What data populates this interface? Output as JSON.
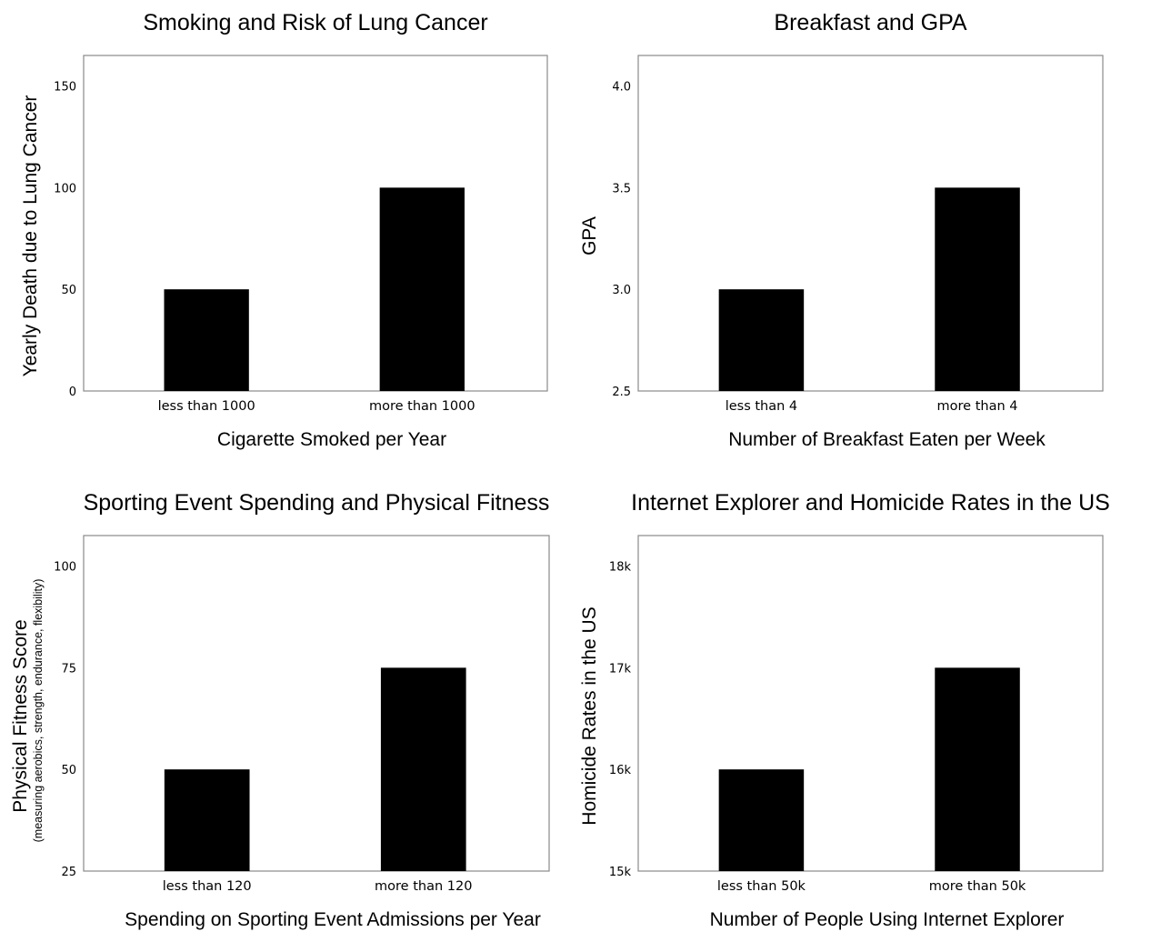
{
  "chart_data": [
    {
      "type": "bar",
      "title": "Smoking and Risk of Lung Cancer",
      "xlabel": "Cigarette Smoked per Year",
      "ylabel": "Yearly Death due to Lung Cancer",
      "ylabel_sub": "",
      "categories": [
        "less than 1000",
        "more than 1000"
      ],
      "values": [
        50,
        100
      ],
      "yticks": [
        0,
        50,
        100,
        150
      ],
      "ytick_labels": [
        "0",
        "50",
        "100",
        "150"
      ],
      "ylim": [
        0,
        165
      ],
      "color": "#000000",
      "grid": false
    },
    {
      "type": "bar",
      "title": "Breakfast and GPA",
      "xlabel": "Number of Breakfast Eaten per Week",
      "ylabel": "GPA",
      "ylabel_sub": "",
      "categories": [
        "less than 4",
        "more than 4"
      ],
      "values": [
        3.0,
        3.5
      ],
      "yticks": [
        2.5,
        3.0,
        3.5,
        4.0
      ],
      "ytick_labels": [
        "2.5",
        "3.0",
        "3.5",
        "4.0"
      ],
      "ylim": [
        2.5,
        4.15
      ],
      "color": "#000000",
      "grid": false
    },
    {
      "type": "bar",
      "title": "Sporting Event Spending and Physical Fitness",
      "xlabel": "Spending on Sporting Event Admissions per Year",
      "ylabel": "Physical Fitness Score",
      "ylabel_sub": "(measuring aerobics,  strength,  endurance,  flexibility)",
      "categories": [
        "less than 120",
        "more than 120"
      ],
      "values": [
        50,
        75
      ],
      "yticks": [
        25,
        50,
        75,
        100
      ],
      "ytick_labels": [
        "25",
        "50",
        "75",
        "100"
      ],
      "ylim": [
        25,
        107.5
      ],
      "color": "#000000",
      "grid": false
    },
    {
      "type": "bar",
      "title": "Internet Explorer and Homicide Rates in the US",
      "xlabel": "Number of People Using Internet Explorer",
      "ylabel": "Homicide Rates in the US",
      "ylabel_sub": "",
      "categories": [
        "less than 50k",
        "more than 50k"
      ],
      "values": [
        16000,
        17000
      ],
      "yticks": [
        15000,
        16000,
        17000,
        18000
      ],
      "ytick_labels": [
        "15k",
        "16k",
        "17k",
        "18k"
      ],
      "ylim": [
        15000,
        18300
      ],
      "color": "#000000",
      "grid": false
    }
  ]
}
